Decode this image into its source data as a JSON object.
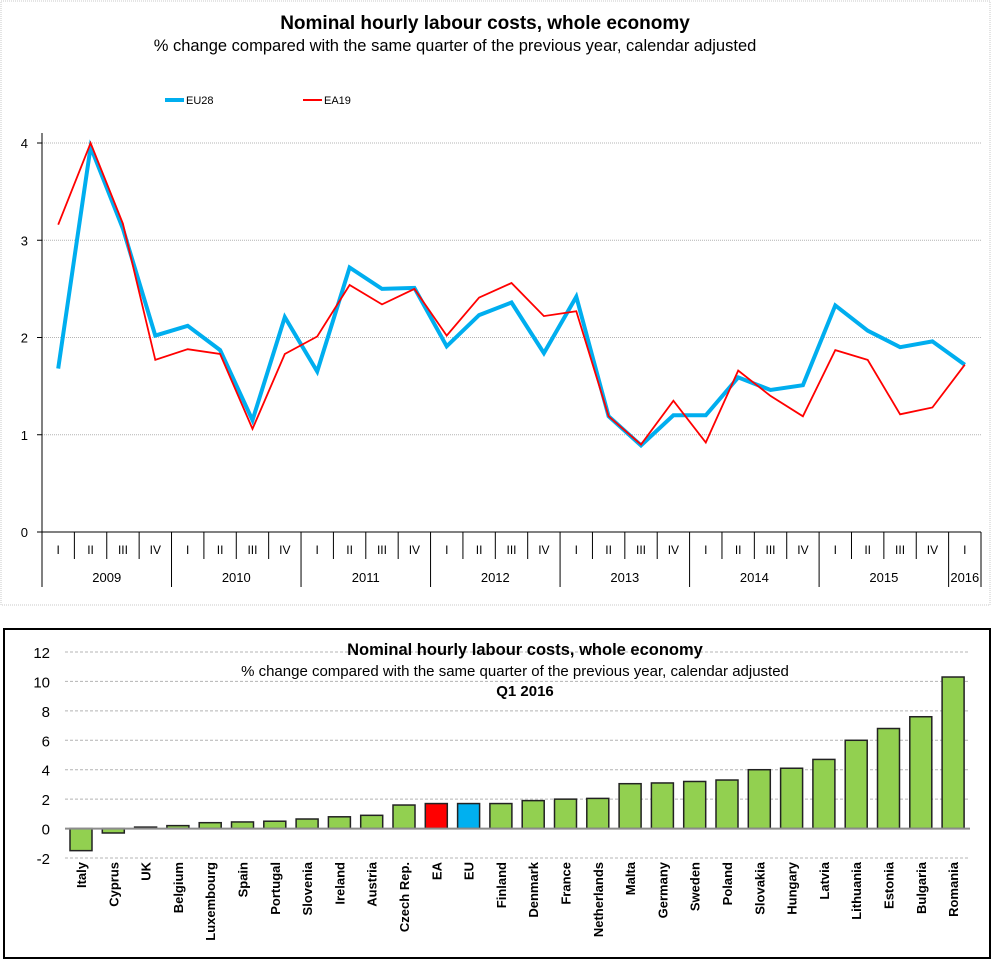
{
  "chart_data": [
    {
      "type": "line",
      "title": "Nominal hourly labour costs, whole economy",
      "subtitle": "% change compared with the same quarter of the previous year, calendar adjusted",
      "xlabel": "",
      "ylabel": "",
      "ylim": [
        0,
        4
      ],
      "yticks": [
        "0",
        "1",
        "2",
        "3",
        "4"
      ],
      "grid": true,
      "legend_position": "top-center",
      "quarter_labels": [
        "I",
        "II",
        "III",
        "IV",
        "I",
        "II",
        "III",
        "IV",
        "I",
        "II",
        "III",
        "IV",
        "I",
        "II",
        "III",
        "IV",
        "I",
        "II",
        "III",
        "IV",
        "I",
        "II",
        "III",
        "IV",
        "I",
        "II",
        "III",
        "IV",
        "I"
      ],
      "years": [
        {
          "label": "2009",
          "quarters": 4
        },
        {
          "label": "2010",
          "quarters": 4
        },
        {
          "label": "2011",
          "quarters": 4
        },
        {
          "label": "2012",
          "quarters": 4
        },
        {
          "label": "2013",
          "quarters": 4
        },
        {
          "label": "2014",
          "quarters": 4
        },
        {
          "label": "2015",
          "quarters": 4
        },
        {
          "label": "2016",
          "quarters": 1
        }
      ],
      "series": [
        {
          "name": "EU28",
          "color": "#00AEEF",
          "values": [
            1.68,
            3.96,
            3.12,
            2.02,
            2.12,
            1.87,
            1.15,
            2.21,
            1.65,
            2.72,
            2.5,
            2.51,
            1.91,
            2.23,
            2.36,
            1.84,
            2.42,
            1.19,
            0.89,
            1.2,
            1.2,
            1.59,
            1.46,
            1.51,
            2.33,
            2.07,
            1.9,
            1.96,
            1.72
          ]
        },
        {
          "name": "EA19",
          "color": "#FF0000",
          "values": [
            3.16,
            4.0,
            3.17,
            1.77,
            1.88,
            1.83,
            1.06,
            1.83,
            2.01,
            2.54,
            2.34,
            2.5,
            2.02,
            2.41,
            2.56,
            2.22,
            2.27,
            1.19,
            0.9,
            1.35,
            0.92,
            1.66,
            1.4,
            1.19,
            1.87,
            1.77,
            1.21,
            1.28,
            1.72
          ]
        }
      ]
    },
    {
      "type": "bar",
      "title": "Nominal hourly labour costs, whole economy",
      "subtitle": "% change compared with the same quarter of the previous year, calendar adjusted",
      "period": "Q1 2016",
      "xlabel": "",
      "ylabel": "",
      "ylim": [
        -2,
        12
      ],
      "yticks": [
        "-2",
        "0",
        "2",
        "4",
        "6",
        "8",
        "10",
        "12"
      ],
      "grid": true,
      "categories": [
        "Italy",
        "Cyprus",
        "UK",
        "Belgium",
        "Luxembourg",
        "Spain",
        "Portugal",
        "Slovenia",
        "Ireland",
        "Austria",
        "Czech Rep.",
        "EA",
        "EU",
        "Finland",
        "Denmark",
        "France",
        "Netherlands",
        "Malta",
        "Germany",
        "Sweden",
        "Poland",
        "Slovakia",
        "Hungary",
        "Latvia",
        "Lithuania",
        "Estonia",
        "Bulgaria",
        "Romania"
      ],
      "values": [
        -1.5,
        -0.3,
        0.1,
        0.2,
        0.4,
        0.45,
        0.5,
        0.65,
        0.8,
        0.9,
        1.6,
        1.7,
        1.7,
        1.7,
        1.9,
        2.0,
        2.05,
        3.05,
        3.1,
        3.2,
        3.3,
        4.0,
        4.1,
        4.7,
        6.0,
        6.8,
        7.6,
        10.3
      ],
      "colors": {
        "default": "#92D050",
        "EA": "#FF0000",
        "EU": "#00B0F0"
      }
    }
  ]
}
